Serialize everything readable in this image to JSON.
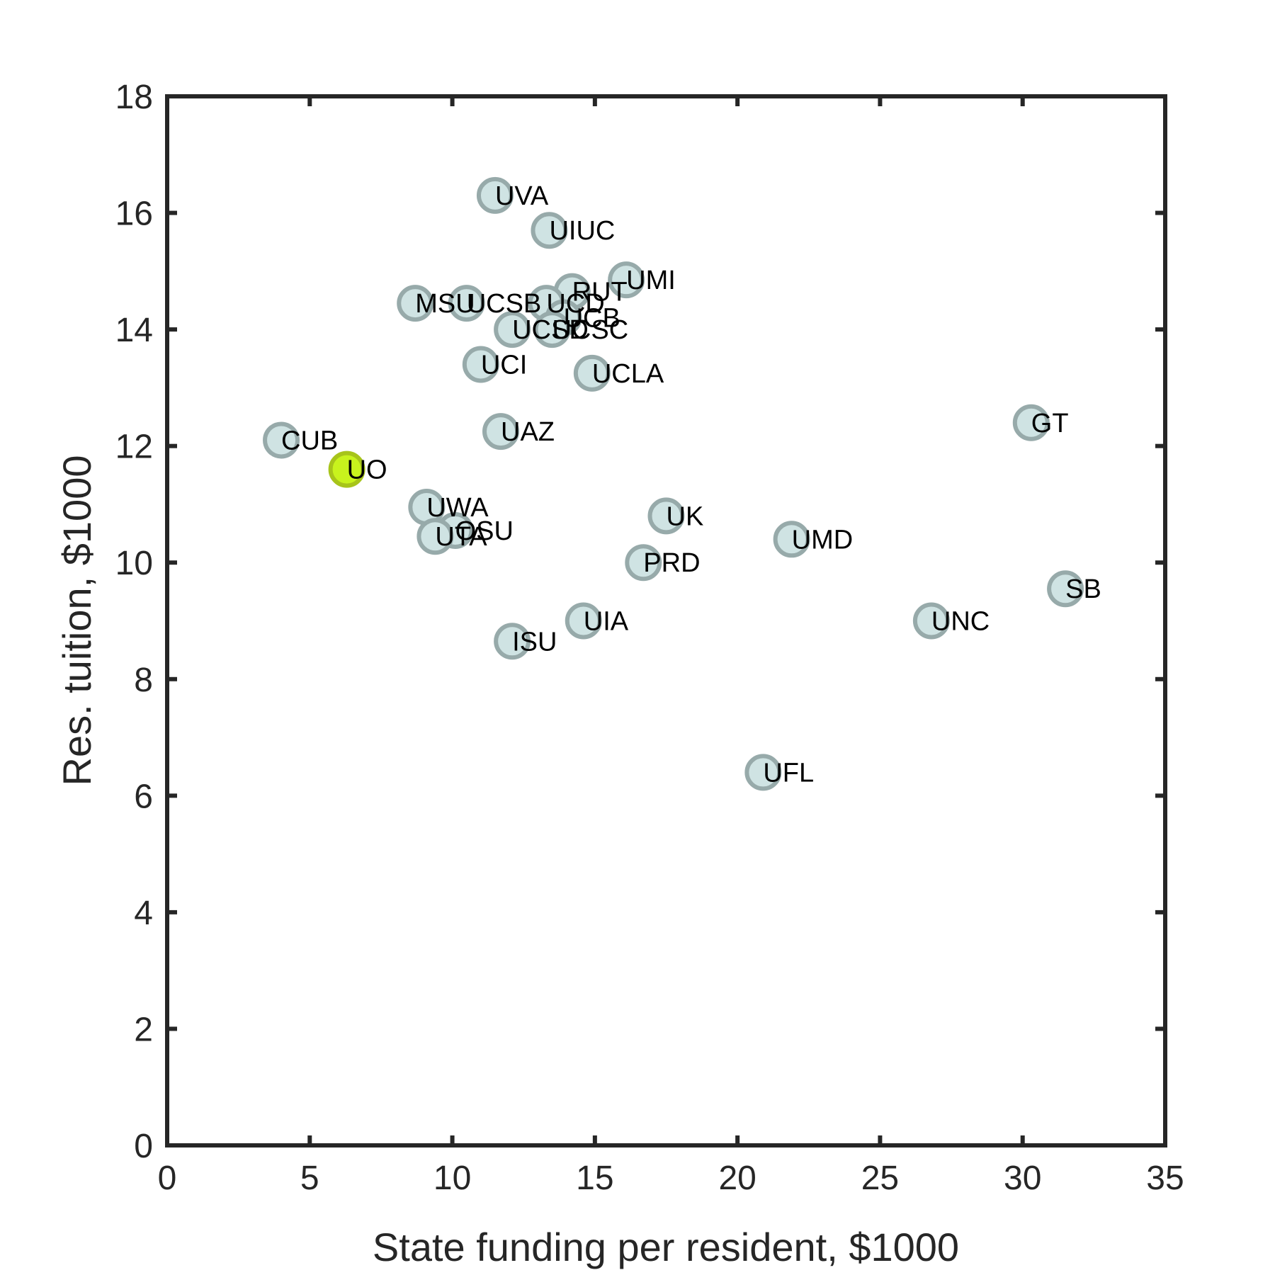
{
  "chart_data": {
    "type": "scatter",
    "title": "",
    "xlabel": "State funding per resident, $1000",
    "ylabel": "Res. tuition, $1000",
    "xlim": [
      0,
      35
    ],
    "ylim": [
      0,
      18
    ],
    "xticks": [
      0,
      5,
      10,
      15,
      20,
      25,
      30,
      35
    ],
    "yticks": [
      0,
      2,
      4,
      6,
      8,
      10,
      12,
      14,
      16,
      18
    ],
    "grid": false,
    "legend": "none",
    "colors": {
      "marker_fill": "#cfe3e3",
      "marker_edge": "#97aaaa",
      "highlight_fill": "#c8f31d",
      "highlight_edge": "#a7c41a",
      "axis": "#262626"
    },
    "points": [
      {
        "label": "UVA",
        "x": 11.5,
        "y": 16.3
      },
      {
        "label": "UIUC",
        "x": 13.4,
        "y": 15.7
      },
      {
        "label": "UMI",
        "x": 16.1,
        "y": 14.85
      },
      {
        "label": "RUT",
        "x": 14.2,
        "y": 14.65
      },
      {
        "label": "MSU",
        "x": 8.7,
        "y": 14.45
      },
      {
        "label": "UCSB",
        "x": 10.5,
        "y": 14.45
      },
      {
        "label": "UCD",
        "x": 13.3,
        "y": 14.45
      },
      {
        "label": "UCB",
        "x": 13.9,
        "y": 14.2
      },
      {
        "label": "UCSD",
        "x": 12.1,
        "y": 14.0
      },
      {
        "label": "UCSC",
        "x": 13.5,
        "y": 14.0
      },
      {
        "label": "UCI",
        "x": 11.0,
        "y": 13.4
      },
      {
        "label": "UCLA",
        "x": 14.9,
        "y": 13.25
      },
      {
        "label": "GT",
        "x": 30.3,
        "y": 12.4
      },
      {
        "label": "UAZ",
        "x": 11.7,
        "y": 12.25
      },
      {
        "label": "CUB",
        "x": 4.0,
        "y": 12.1
      },
      {
        "label": "UO",
        "x": 6.3,
        "y": 11.6,
        "highlight": true
      },
      {
        "label": "UWA",
        "x": 9.1,
        "y": 10.95
      },
      {
        "label": "UK",
        "x": 17.5,
        "y": 10.8
      },
      {
        "label": "OSU",
        "x": 10.1,
        "y": 10.55
      },
      {
        "label": "UTA",
        "x": 9.4,
        "y": 10.45
      },
      {
        "label": "UMD",
        "x": 21.9,
        "y": 10.4
      },
      {
        "label": "PRD",
        "x": 16.7,
        "y": 10.0
      },
      {
        "label": "SB",
        "x": 31.5,
        "y": 9.55
      },
      {
        "label": "UNC",
        "x": 26.8,
        "y": 9.0
      },
      {
        "label": "UIA",
        "x": 14.6,
        "y": 9.0
      },
      {
        "label": "ISU",
        "x": 12.1,
        "y": 8.65
      },
      {
        "label": "UFL",
        "x": 20.9,
        "y": 6.4
      }
    ]
  }
}
